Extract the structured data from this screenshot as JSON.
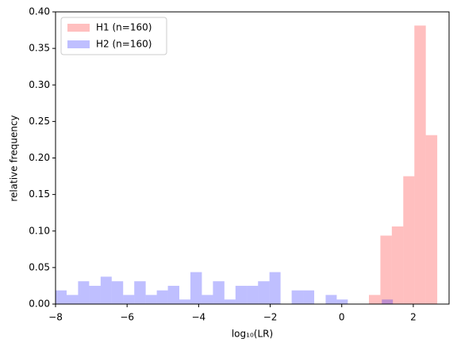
{
  "chart_data": {
    "type": "histogram",
    "xlabel": "log₁₀(LR)",
    "ylabel": "relative frequency",
    "xlim": [
      -8,
      3
    ],
    "ylim": [
      0,
      0.4
    ],
    "xticks": [
      {
        "value": -8,
        "label": "−8"
      },
      {
        "value": -6,
        "label": "−6"
      },
      {
        "value": -4,
        "label": "−4"
      },
      {
        "value": -2,
        "label": "−2"
      },
      0,
      2
    ],
    "yticks": [
      {
        "value": 0,
        "label": "0.00"
      },
      {
        "value": 0.05,
        "label": "0.05"
      },
      {
        "value": 0.1,
        "label": "0.10"
      },
      {
        "value": 0.15,
        "label": "0.15"
      },
      {
        "value": 0.2,
        "label": "0.20"
      },
      {
        "value": 0.25,
        "label": "0.25"
      },
      {
        "value": 0.3,
        "label": "0.30"
      },
      {
        "value": 0.35,
        "label": "0.35"
      },
      {
        "value": 0.4,
        "label": "0.40"
      }
    ],
    "legend": "upper left",
    "series": [
      {
        "name": "H1 (n=160)",
        "color": "#ff0000",
        "opacity": 0.25,
        "bins": [
          0.76,
          1.08,
          1.4,
          1.72,
          2.03,
          2.35,
          2.67
        ],
        "values": [
          0.0125,
          0.09375,
          0.10625,
          0.175,
          0.38125,
          0.23125
        ]
      },
      {
        "name": "H2 (n=160)",
        "color": "#0000ff",
        "opacity": 0.25,
        "bins": [
          -8,
          -7.69,
          -7.37,
          -7.06,
          -6.74,
          -6.43,
          -6.11,
          -5.8,
          -5.48,
          -5.17,
          -4.86,
          -4.54,
          -4.23,
          -3.91,
          -3.6,
          -3.28,
          -2.97,
          -2.65,
          -2.34,
          -2.02,
          -1.71,
          -1.4,
          -1.08,
          -0.77,
          -0.45,
          -0.14,
          0.17,
          0.49,
          0.8,
          1.12,
          1.43
        ],
        "values": [
          0.01875,
          0.0125,
          0.03125,
          0.025,
          0.0375,
          0.03125,
          0.0125,
          0.03125,
          0.0125,
          0.01875,
          0.025,
          0.00625,
          0.04375,
          0.0125,
          0.03125,
          0.00625,
          0.025,
          0.025,
          0.03125,
          0.04375,
          0,
          0.01875,
          0.01875,
          0,
          0.0125,
          0.00625,
          0,
          0,
          0,
          0.00625
        ]
      }
    ]
  }
}
